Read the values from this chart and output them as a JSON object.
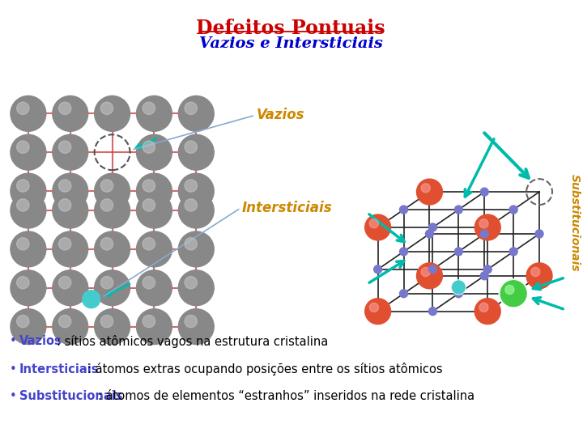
{
  "title": "Defeitos Pontuais",
  "subtitle": "Vazios e Intersticiais",
  "title_color": "#cc0000",
  "subtitle_color": "#0000cc",
  "bg_color": "#ffffff",
  "label_vazios": "Vazios",
  "label_intersticiais": "Intersticiais",
  "label_substitucionais": "Substitucionais",
  "label_color_orange": "#cc8800",
  "bullet_color_blue": "#4444cc",
  "atom_color_gray": "#888888",
  "atom_color_red": "#e05030",
  "atom_color_blue_node": "#7777cc",
  "atom_color_green": "#44cc44",
  "atom_color_cyan": "#44cccc",
  "line_color_red": "#cc4444",
  "line_color_black": "#222222",
  "arrow_color": "#00bbaa",
  "text1_key": "Vazios",
  "text1_key_color": "#4444cc",
  "text1_val": ": sítios atômicos vagos na estrutura cristalina",
  "text1_val_color": "#000000",
  "text2_key": "Intersticiais",
  "text2_key_color": "#4444cc",
  "text2_val": ": átomos extras ocupando posições entre os sítios atômicos",
  "text2_val_color": "#000000",
  "text3_key": "Substitucionais",
  "text3_key_color": "#4444cc",
  "text3_val": ": átomos de elementos “estranhos” inseridos na rede cristalina",
  "text3_val_color": "#000000"
}
